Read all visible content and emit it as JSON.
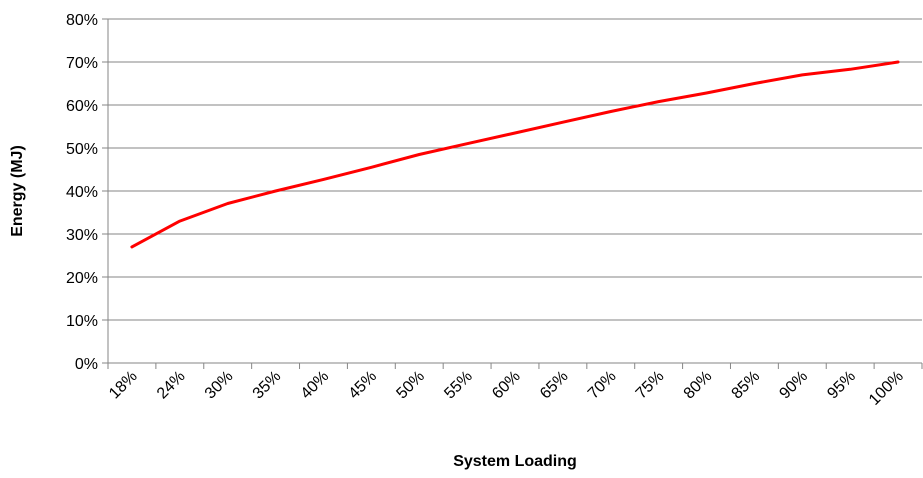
{
  "chart_data": {
    "type": "line",
    "title": "",
    "xlabel": "System Loading",
    "ylabel": "Energy (MJ)",
    "categories": [
      "18%",
      "24%",
      "30%",
      "35%",
      "40%",
      "45%",
      "50%",
      "55%",
      "60%",
      "65%",
      "70%",
      "75%",
      "80%",
      "85%",
      "90%",
      "95%",
      "100%"
    ],
    "y_ticks": [
      "0%",
      "10%",
      "20%",
      "30%",
      "40%",
      "50%",
      "60%",
      "70%",
      "80%"
    ],
    "ylim": [
      0,
      80
    ],
    "grid": true,
    "legend": "none",
    "series": [
      {
        "values": [
          27.0,
          33.0,
          37.1,
          40.0,
          42.7,
          45.5,
          48.5,
          51.0,
          53.5,
          56.0,
          58.5,
          60.8,
          62.8,
          65.0,
          67.0,
          68.3,
          70.0
        ],
        "color": "#ff0000"
      }
    ]
  }
}
